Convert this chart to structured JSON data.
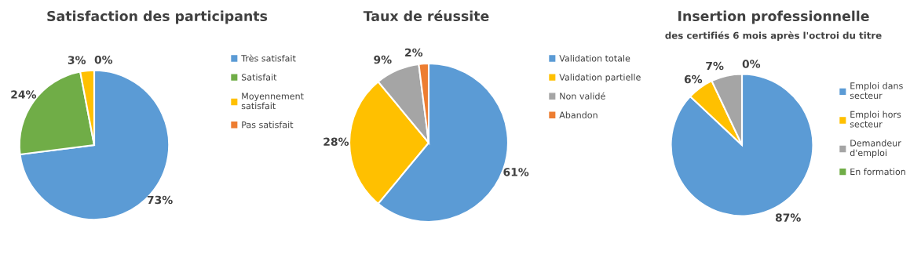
{
  "chart_data": [
    {
      "type": "pie",
      "title": "Satisfaction des participants",
      "categories": [
        "Très satisfait",
        "Satisfait",
        "Moyennement\nsatisfait",
        "Pas satisfait"
      ],
      "values": [
        73,
        24,
        3,
        0
      ],
      "value_labels": [
        "73%",
        "24%",
        "3%",
        "0%"
      ],
      "colors": [
        "#5b9bd5",
        "#70ad47",
        "#ffc000",
        "#ed7d31"
      ],
      "legend": "right"
    },
    {
      "type": "pie",
      "title": "Taux de réussite",
      "categories": [
        "Validation totale",
        "Validation partielle",
        "Non validé",
        "Abandon"
      ],
      "values": [
        61,
        28,
        9,
        2
      ],
      "value_labels": [
        "61%",
        "28%",
        "9%",
        "2%"
      ],
      "colors": [
        "#5b9bd5",
        "#ffc000",
        "#a5a5a5",
        "#ed7d31"
      ],
      "legend": "right"
    },
    {
      "type": "pie",
      "title": "Insertion professionnelle",
      "subtitle": "des certifiés 6 mois après l'octroi du titre",
      "categories": [
        "Emploi dans\nsecteur",
        "Emploi hors\nsecteur",
        "Demandeur\nd'emploi",
        "En formation"
      ],
      "values": [
        87,
        6,
        7,
        0
      ],
      "value_labels": [
        "87%",
        "6%",
        "7%",
        "0%"
      ],
      "colors": [
        "#5b9bd5",
        "#ffc000",
        "#a5a5a5",
        "#70ad47"
      ],
      "legend": "right"
    }
  ]
}
